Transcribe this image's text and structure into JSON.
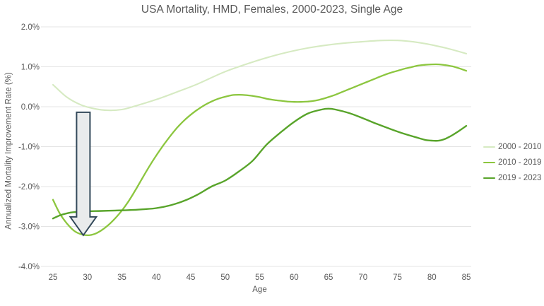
{
  "chart_data": {
    "type": "line",
    "title": "USA Mortality, HMD, Females, 2000-2023, Single Age",
    "xlabel": "Age",
    "ylabel": "Annualized  Mortality Improvement Rate (%)",
    "xlim": [
      25,
      85
    ],
    "ylim": [
      -4.0,
      2.0
    ],
    "grid": "horizontal-only",
    "legend_position": "right",
    "x_ticks": [
      25,
      30,
      35,
      40,
      45,
      50,
      55,
      60,
      65,
      70,
      75,
      80,
      85
    ],
    "y_ticks": [
      {
        "label": "2.0%",
        "value": 2.0
      },
      {
        "label": "1.0%",
        "value": 1.0
      },
      {
        "label": "0.0%",
        "value": 0.0
      },
      {
        "label": "-1.0%",
        "value": -1.0
      },
      {
        "label": "-2.0%",
        "value": -2.0
      },
      {
        "label": "-3.0%",
        "value": -3.0
      },
      {
        "label": "-4.0%",
        "value": -4.0
      }
    ],
    "colors": {
      "gridline": "#e4e4e4",
      "tick_text": "#595959",
      "title_text": "#595959"
    },
    "series": [
      {
        "name": "2000 - 2010",
        "color": "#d6eac2",
        "stroke_width": 2.1,
        "points": [
          [
            25,
            0.55
          ],
          [
            27,
            0.24
          ],
          [
            29,
            0.05
          ],
          [
            31,
            -0.05
          ],
          [
            33,
            -0.09
          ],
          [
            35,
            -0.07
          ],
          [
            37,
            0.02
          ],
          [
            40,
            0.18
          ],
          [
            43,
            0.37
          ],
          [
            46,
            0.57
          ],
          [
            50,
            0.88
          ],
          [
            54,
            1.12
          ],
          [
            58,
            1.32
          ],
          [
            62,
            1.47
          ],
          [
            66,
            1.57
          ],
          [
            70,
            1.63
          ],
          [
            73,
            1.66
          ],
          [
            76,
            1.65
          ],
          [
            79,
            1.58
          ],
          [
            82,
            1.47
          ],
          [
            85,
            1.33
          ]
        ]
      },
      {
        "name": "2010 - 2019",
        "color": "#8cc63f",
        "stroke_width": 2.3,
        "points": [
          [
            25,
            -2.33
          ],
          [
            26,
            -2.68
          ],
          [
            27,
            -2.92
          ],
          [
            28,
            -3.1
          ],
          [
            29,
            -3.19
          ],
          [
            30,
            -3.22
          ],
          [
            31,
            -3.19
          ],
          [
            32,
            -3.1
          ],
          [
            33,
            -2.97
          ],
          [
            34,
            -2.8
          ],
          [
            35,
            -2.6
          ],
          [
            36,
            -2.36
          ],
          [
            37,
            -2.08
          ],
          [
            38,
            -1.78
          ],
          [
            39,
            -1.49
          ],
          [
            40,
            -1.22
          ],
          [
            41,
            -0.97
          ],
          [
            42,
            -0.74
          ],
          [
            43,
            -0.53
          ],
          [
            44,
            -0.35
          ],
          [
            45,
            -0.2
          ],
          [
            46,
            -0.07
          ],
          [
            47,
            0.04
          ],
          [
            48,
            0.13
          ],
          [
            49,
            0.2
          ],
          [
            50,
            0.25
          ],
          [
            51,
            0.29
          ],
          [
            52,
            0.3
          ],
          [
            53,
            0.29
          ],
          [
            54,
            0.27
          ],
          [
            55,
            0.24
          ],
          [
            56,
            0.2
          ],
          [
            57,
            0.17
          ],
          [
            58,
            0.15
          ],
          [
            59,
            0.13
          ],
          [
            60,
            0.12
          ],
          [
            61,
            0.12
          ],
          [
            62,
            0.13
          ],
          [
            63,
            0.15
          ],
          [
            64,
            0.19
          ],
          [
            65,
            0.24
          ],
          [
            66,
            0.3
          ],
          [
            67,
            0.37
          ],
          [
            68,
            0.44
          ],
          [
            69,
            0.51
          ],
          [
            70,
            0.58
          ],
          [
            71,
            0.65
          ],
          [
            72,
            0.72
          ],
          [
            73,
            0.79
          ],
          [
            74,
            0.85
          ],
          [
            75,
            0.9
          ],
          [
            76,
            0.95
          ],
          [
            77,
            0.99
          ],
          [
            78,
            1.03
          ],
          [
            79,
            1.05
          ],
          [
            80,
            1.06
          ],
          [
            81,
            1.06
          ],
          [
            82,
            1.04
          ],
          [
            83,
            1.01
          ],
          [
            84,
            0.96
          ],
          [
            85,
            0.9
          ]
        ]
      },
      {
        "name": "2019 - 2023",
        "color": "#58a42a",
        "stroke_width": 2.4,
        "points": [
          [
            25,
            -2.8
          ],
          [
            26,
            -2.72
          ],
          [
            27,
            -2.67
          ],
          [
            28,
            -2.64
          ],
          [
            29,
            -2.63
          ],
          [
            30,
            -2.62
          ],
          [
            32,
            -2.61
          ],
          [
            34,
            -2.6
          ],
          [
            36,
            -2.59
          ],
          [
            38,
            -2.57
          ],
          [
            40,
            -2.54
          ],
          [
            42,
            -2.47
          ],
          [
            44,
            -2.36
          ],
          [
            46,
            -2.2
          ],
          [
            48,
            -2.0
          ],
          [
            50,
            -1.85
          ],
          [
            52,
            -1.62
          ],
          [
            54,
            -1.35
          ],
          [
            56,
            -0.95
          ],
          [
            58,
            -0.65
          ],
          [
            60,
            -0.38
          ],
          [
            62,
            -0.17
          ],
          [
            64,
            -0.07
          ],
          [
            65,
            -0.05
          ],
          [
            66,
            -0.07
          ],
          [
            68,
            -0.16
          ],
          [
            70,
            -0.29
          ],
          [
            72,
            -0.43
          ],
          [
            74,
            -0.56
          ],
          [
            76,
            -0.68
          ],
          [
            78,
            -0.78
          ],
          [
            79,
            -0.83
          ],
          [
            80,
            -0.85
          ],
          [
            81,
            -0.85
          ],
          [
            82,
            -0.8
          ],
          [
            83,
            -0.71
          ],
          [
            84,
            -0.6
          ],
          [
            85,
            -0.48
          ]
        ]
      }
    ],
    "annotation": {
      "shape": "down-arrow",
      "age": 29.4,
      "from_value": -0.14,
      "to_value": -3.22,
      "fill": "#e9ebec",
      "stroke": "#33495a"
    }
  }
}
